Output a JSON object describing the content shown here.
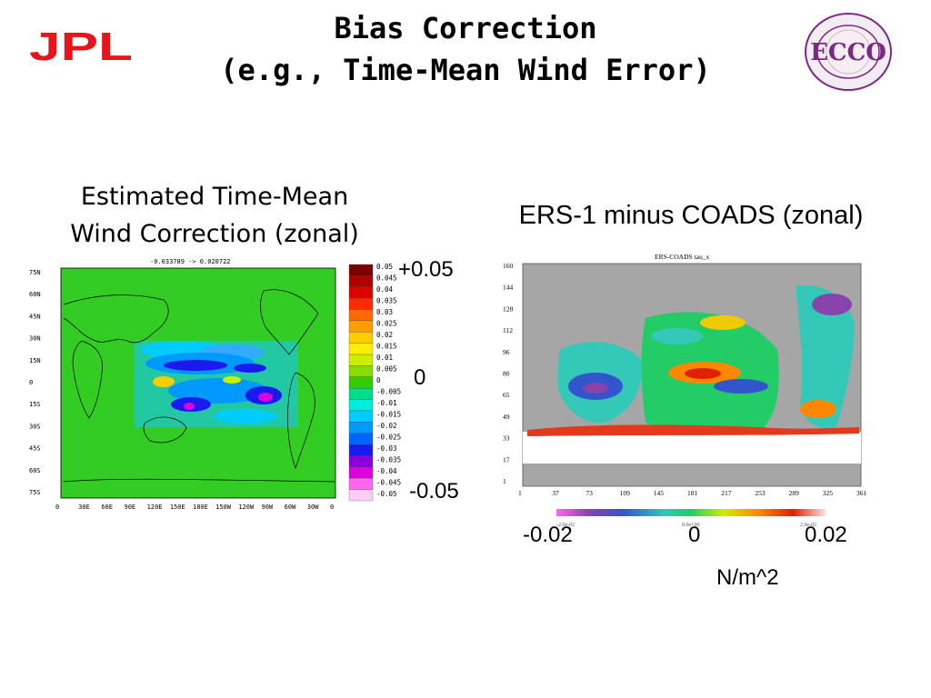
{
  "title": {
    "line1": "Bias Correction",
    "line2": "(e.g., Time-Mean Wind Error)"
  },
  "logos": {
    "left": {
      "text": "JPL",
      "icon": "jpl-logo",
      "color": "#e8141b"
    },
    "right": {
      "text": "ECCO",
      "icon": "ecco-seal-logo",
      "color": "#7b2a84"
    }
  },
  "left_panel": {
    "caption_line1": "Estimated Time-Mean",
    "caption_line2": "Wind Correction (zonal)",
    "map_header": "-0.033789 -> 0.020722",
    "lat_labels": [
      "75N",
      "60N",
      "45N",
      "30N",
      "15N",
      "0",
      "15S",
      "30S",
      "45S",
      "60S",
      "75S"
    ],
    "lon_labels": [
      "0",
      "30E",
      "60E",
      "90E",
      "120E",
      "150E",
      "180E",
      "150W",
      "120W",
      "90W",
      "60W",
      "30W",
      "0"
    ],
    "colorbar_labels": [
      "0.05",
      "0.045",
      "0.04",
      "0.035",
      "0.03",
      "0.025",
      "0.02",
      "0.015",
      "0.01",
      "0.005",
      "0",
      "-0.005",
      "-0.01",
      "-0.015",
      "-0.02",
      "-0.025",
      "-0.03",
      "-0.035",
      "-0.04",
      "-0.045",
      "-0.05"
    ],
    "colorbar_colors": [
      "#7a0000",
      "#b00000",
      "#e00000",
      "#ff2a00",
      "#ff6a00",
      "#ff9c00",
      "#ffcc00",
      "#ffee00",
      "#ccee00",
      "#88dd00",
      "#33cc00",
      "#00dd88",
      "#00eedd",
      "#00ccff",
      "#0099ff",
      "#0066ff",
      "#1a1aee",
      "#8800dd",
      "#dd00dd",
      "#ff66ee",
      "#ffccf5"
    ],
    "big_labels": {
      "top": "+0.05",
      "mid": "0",
      "bottom": "-0.05"
    }
  },
  "right_panel": {
    "caption": "ERS-1 minus COADS (zonal)",
    "map_header": "ERS-COADS tau_x",
    "y_ticks": [
      "160",
      "144",
      "128",
      "112",
      "96",
      "80",
      "65",
      "49",
      "33",
      "17",
      "1"
    ],
    "x_ticks": [
      "1",
      "37",
      "73",
      "109",
      "145",
      "181",
      "217",
      "253",
      "289",
      "325",
      "361"
    ],
    "colorbar_small": {
      "left": "-2.0e-02",
      "mid": "0.0e+00",
      "right": "2.0e-02"
    },
    "big_labels": {
      "left": "-0.02",
      "mid": "0",
      "right": "0.02"
    },
    "unit": "N/m^2"
  }
}
